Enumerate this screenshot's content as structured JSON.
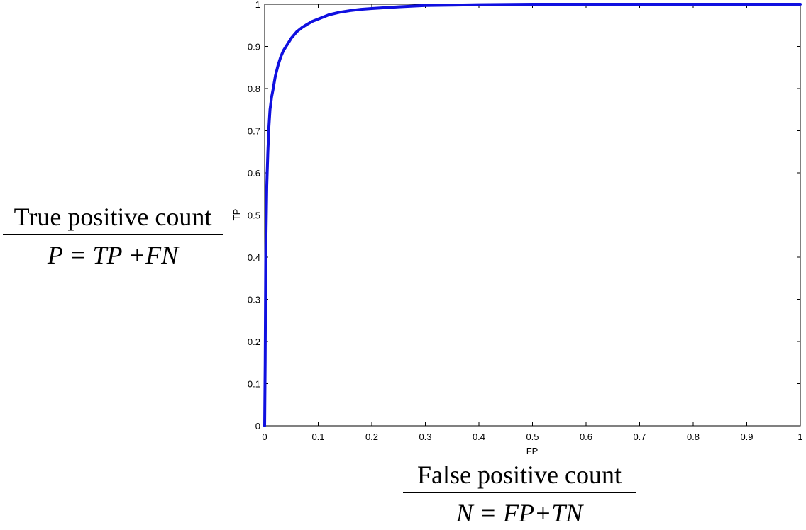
{
  "chart_data": {
    "type": "line",
    "title": "",
    "xlabel": "FP",
    "ylabel": "TP",
    "xlim": [
      0,
      1
    ],
    "ylim": [
      0,
      1
    ],
    "xticks": [
      "0",
      "0.1",
      "0.2",
      "0.3",
      "0.4",
      "0.5",
      "0.6",
      "0.7",
      "0.8",
      "0.9",
      "1"
    ],
    "yticks": [
      "0",
      "0.1",
      "0.2",
      "0.3",
      "0.4",
      "0.5",
      "0.6",
      "0.7",
      "0.8",
      "0.9",
      "1"
    ],
    "grid": false,
    "legend": false,
    "series": [
      {
        "color": "#1010e0",
        "x": [
          0,
          0.001,
          0.002,
          0.004,
          0.006,
          0.008,
          0.01,
          0.013,
          0.016,
          0.02,
          0.025,
          0.03,
          0.035,
          0.04,
          0.05,
          0.06,
          0.07,
          0.08,
          0.09,
          0.1,
          0.12,
          0.14,
          0.16,
          0.18,
          0.2,
          0.25,
          0.3,
          0.35,
          0.4,
          0.5,
          0.6,
          0.7,
          0.8,
          0.9,
          1
        ],
        "y": [
          0,
          0.15,
          0.4,
          0.57,
          0.65,
          0.71,
          0.75,
          0.78,
          0.8,
          0.83,
          0.855,
          0.875,
          0.89,
          0.9,
          0.92,
          0.935,
          0.945,
          0.953,
          0.96,
          0.965,
          0.975,
          0.981,
          0.985,
          0.988,
          0.99,
          0.994,
          0.997,
          0.998,
          0.999,
          1,
          1,
          1,
          1,
          1,
          1
        ]
      }
    ]
  },
  "annotations": {
    "y_fraction": {
      "numerator": "True positive count",
      "denominator": "P = TP +FN"
    },
    "x_fraction": {
      "numerator": "False positive count",
      "denominator": "N = FP+TN"
    }
  }
}
